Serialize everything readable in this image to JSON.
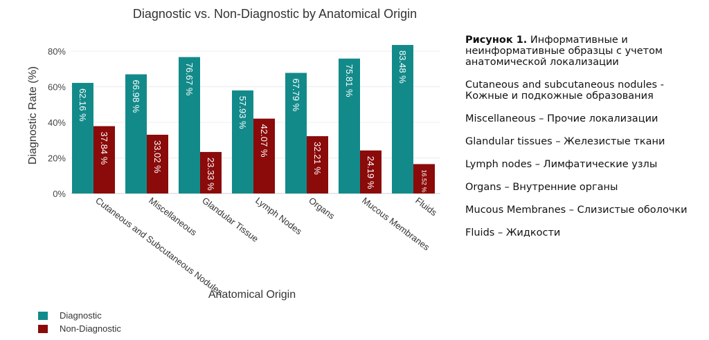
{
  "chart_data": {
    "type": "bar",
    "title": "Diagnostic vs. Non-Diagnostic by Anatomical Origin",
    "xlabel": "Anatomical Origin",
    "ylabel": "Diagnostic Rate (%)",
    "ylim": [
      0,
      85
    ],
    "yticks": [
      "0%",
      "20%",
      "40%",
      "60%",
      "80%"
    ],
    "ytick_values": [
      0,
      20,
      40,
      60,
      80
    ],
    "categories": [
      "Cutaneous and Subcutaneous Nodules",
      "Miscellaneous",
      "Glandular Tissue",
      "Lymph Nodes",
      "Organs",
      "Mucous Membranes",
      "Fluids"
    ],
    "series": [
      {
        "name": "Diagnostic",
        "color": "#138A8A",
        "values": [
          62.16,
          66.98,
          76.67,
          57.93,
          67.79,
          75.81,
          83.48
        ],
        "labels": [
          "62.16 %",
          "66.98 %",
          "76.67 %",
          "57.93 %",
          "67.79 %",
          "75.81 %",
          "83.48 %"
        ]
      },
      {
        "name": "Non-Diagnostic",
        "color": "#8B0A0A",
        "values": [
          37.84,
          33.02,
          23.33,
          42.07,
          32.21,
          24.19,
          16.52
        ],
        "labels": [
          "37.84 %",
          "33.02 %",
          "23.33 %",
          "42.07 %",
          "32.21 %",
          "24.19 %",
          "16.52 %"
        ]
      }
    ],
    "legend": "bottom-left"
  },
  "caption": {
    "figure_label": "Рисунок 1.",
    "figure_text": "Информативные и неинформативные образцы с учетом анатомической локализации",
    "lines": [
      "Cutaneous and subcutaneous nodules - Кожные и подкожные образования",
      "Miscellaneous – Прочие локализации",
      "Glandular tissues – Железистые ткани",
      "Lymph nodes – Лимфатические узлы",
      "Organs – Внутренние органы",
      "Mucous Membranes – Слизистые оболочки",
      "Fluids – Жидкости"
    ]
  }
}
